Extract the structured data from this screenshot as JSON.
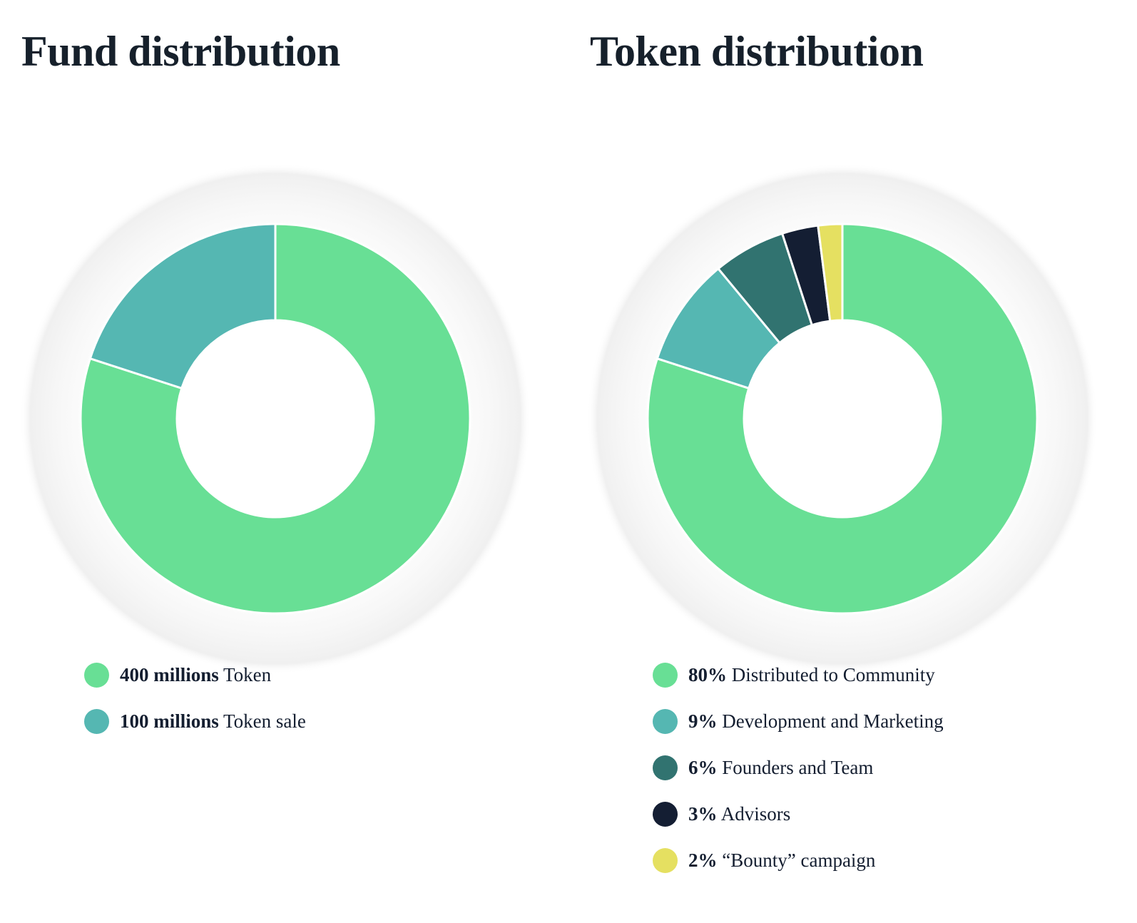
{
  "colors": {
    "green": "#68df95",
    "teal": "#55b7b2",
    "dark_teal": "#317370",
    "navy": "#141e33",
    "yellow": "#e5e061"
  },
  "chart_data": [
    {
      "type": "pie",
      "variant": "donut",
      "title": "Fund distribution",
      "slices": [
        {
          "value": "400 millions",
          "label": "Token",
          "amount": 400,
          "color": "#68df95"
        },
        {
          "value": "100 millions",
          "label": "Token sale",
          "amount": 100,
          "color": "#55b7b2"
        }
      ],
      "legend_position": "bottom"
    },
    {
      "type": "pie",
      "variant": "donut",
      "title": "Token distribution",
      "slices": [
        {
          "value": "80%",
          "label": "Distributed to Community",
          "amount": 80,
          "color": "#68df95"
        },
        {
          "value": "9%",
          "label": "Development and Marketing",
          "amount": 9,
          "color": "#55b7b2"
        },
        {
          "value": "6%",
          "label": "Founders and Team",
          "amount": 6,
          "color": "#317370"
        },
        {
          "value": "3%",
          "label": "Advisors",
          "amount": 3,
          "color": "#141e33"
        },
        {
          "value": "2%",
          "label": "“Bounty” campaign",
          "amount": 2,
          "color": "#e5e061"
        }
      ],
      "legend_position": "bottom"
    }
  ]
}
